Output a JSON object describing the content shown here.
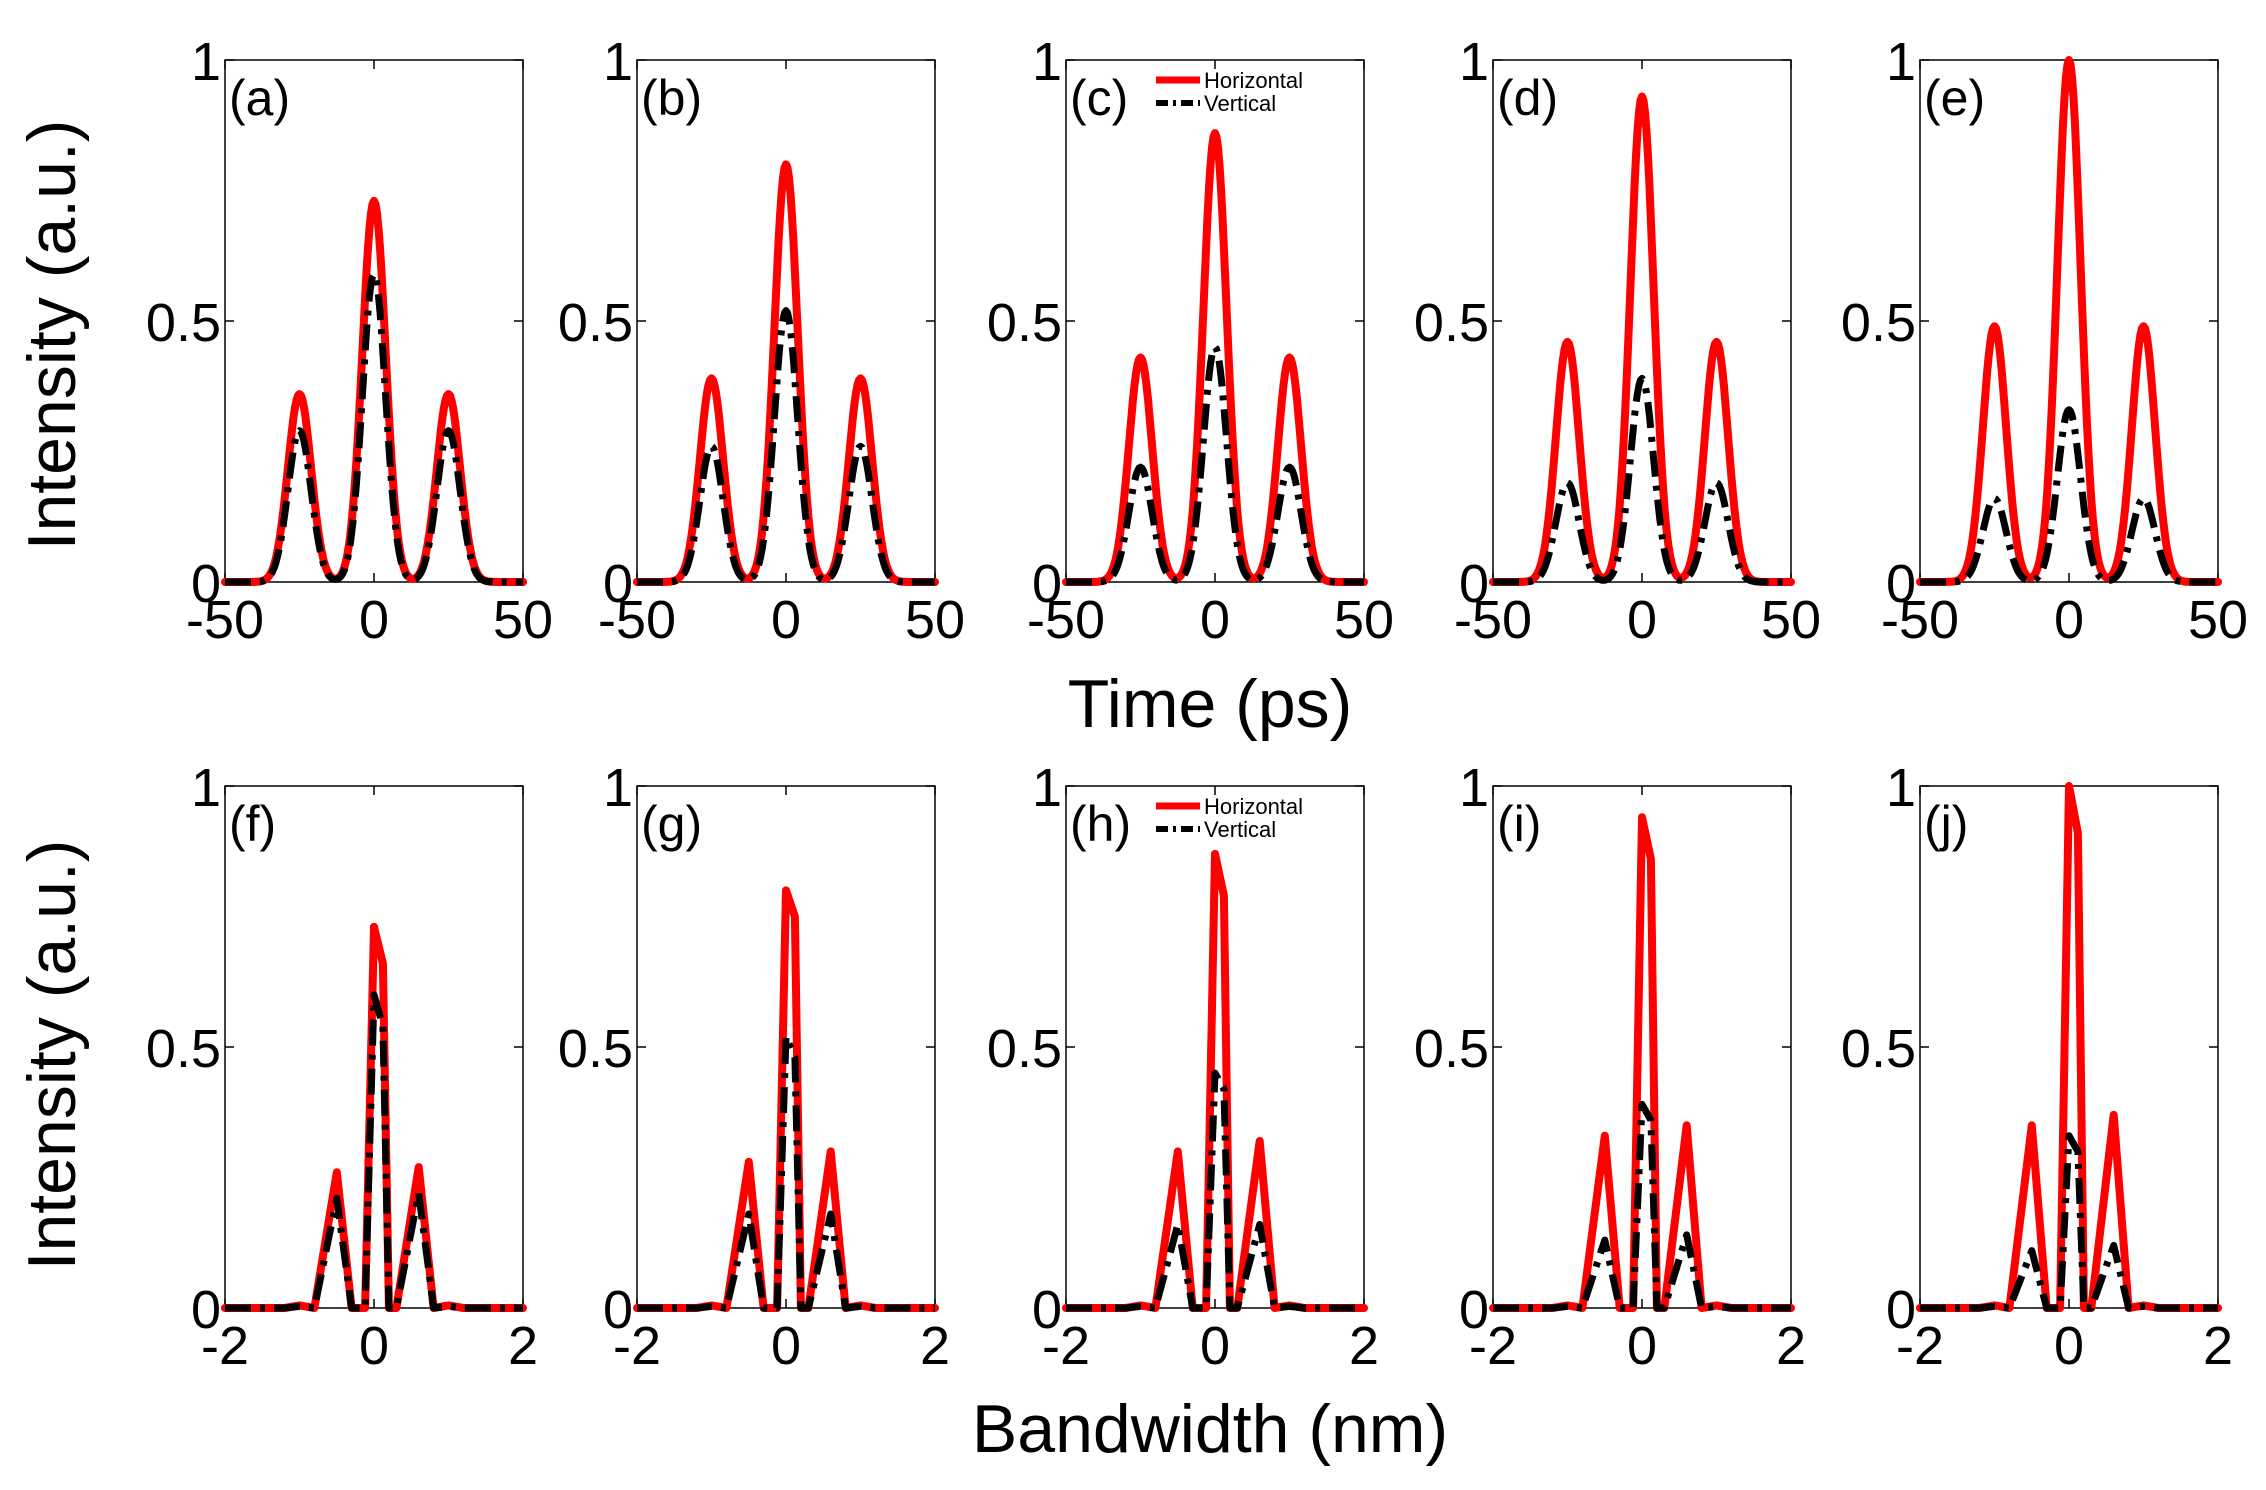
{
  "figure_title": "",
  "colors": {
    "horizontal": "#ff0000",
    "vertical": "#000000"
  },
  "chart_data": [
    {
      "type": "line",
      "label": "(a)",
      "xlabel": "Time (ps)",
      "ylabel": "Intensity (a.u.)",
      "xlim": [
        -50,
        50
      ],
      "ylim": [
        0,
        1
      ],
      "xticks": [
        "-50",
        "0",
        "50"
      ],
      "yticks": [
        "0",
        "0.5",
        "1"
      ],
      "peak_center": 0,
      "side_peak_offset": 25,
      "peak_width": 3.9,
      "profile": "gaussian",
      "series": [
        {
          "name": "Horizontal",
          "peaks": [
            0.36,
            0.73,
            0.36
          ]
        },
        {
          "name": "Vertical",
          "peaks": [
            0.29,
            0.59,
            0.29
          ]
        }
      ]
    },
    {
      "type": "line",
      "label": "(b)",
      "xlabel": "Time (ps)",
      "ylabel": "Intensity (a.u.)",
      "xlim": [
        -50,
        50
      ],
      "ylim": [
        0,
        1
      ],
      "xticks": [
        "-50",
        "0",
        "50"
      ],
      "yticks": [
        "0",
        "0.5",
        "1"
      ],
      "peak_center": 0,
      "side_peak_offset": 25,
      "peak_width": 3.9,
      "profile": "gaussian",
      "series": [
        {
          "name": "Horizontal",
          "peaks": [
            0.39,
            0.8,
            0.39
          ]
        },
        {
          "name": "Vertical",
          "peaks": [
            0.26,
            0.52,
            0.26
          ]
        }
      ]
    },
    {
      "type": "line",
      "label": "(c)",
      "xlabel": "Time (ps)",
      "ylabel": "Intensity (a.u.)",
      "xlim": [
        -50,
        50
      ],
      "ylim": [
        0,
        1
      ],
      "xticks": [
        "-50",
        "0",
        "50"
      ],
      "yticks": [
        "0",
        "0.5",
        "1"
      ],
      "peak_center": 0,
      "side_peak_offset": 25,
      "peak_width": 3.9,
      "profile": "gaussian",
      "legend": {
        "location": "top-right",
        "entries": [
          "Horizontal",
          "Vertical"
        ]
      },
      "series": [
        {
          "name": "Horizontal",
          "peaks": [
            0.43,
            0.86,
            0.43
          ]
        },
        {
          "name": "Vertical",
          "peaks": [
            0.22,
            0.45,
            0.22
          ]
        }
      ]
    },
    {
      "type": "line",
      "label": "(d)",
      "xlabel": "Time (ps)",
      "ylabel": "Intensity (a.u.)",
      "xlim": [
        -50,
        50
      ],
      "ylim": [
        0,
        1
      ],
      "xticks": [
        "-50",
        "0",
        "50"
      ],
      "yticks": [
        "0",
        "0.5",
        "1"
      ],
      "peak_center": 0,
      "side_peak_offset": 25,
      "peak_width": 3.9,
      "profile": "gaussian",
      "series": [
        {
          "name": "Horizontal",
          "peaks": [
            0.46,
            0.93,
            0.46
          ]
        },
        {
          "name": "Vertical",
          "peaks": [
            0.19,
            0.39,
            0.19
          ]
        }
      ]
    },
    {
      "type": "line",
      "label": "(e)",
      "xlabel": "Time (ps)",
      "ylabel": "Intensity (a.u.)",
      "xlim": [
        -50,
        50
      ],
      "ylim": [
        0,
        1
      ],
      "xticks": [
        "-50",
        "0",
        "50"
      ],
      "yticks": [
        "0",
        "0.5",
        "1"
      ],
      "peak_center": 0,
      "side_peak_offset": 25,
      "peak_width": 3.9,
      "profile": "gaussian",
      "series": [
        {
          "name": "Horizontal",
          "peaks": [
            0.49,
            1.0,
            0.49
          ]
        },
        {
          "name": "Vertical",
          "peaks": [
            0.16,
            0.33,
            0.16
          ]
        }
      ]
    },
    {
      "type": "line",
      "label": "(f)",
      "xlabel": "Bandwidth (nm)",
      "ylabel": "Intensity (a.u.)",
      "xlim": [
        -2,
        2
      ],
      "ylim": [
        0,
        1
      ],
      "xticks": [
        "-2",
        "0",
        "2"
      ],
      "yticks": [
        "0",
        "0.5",
        "1"
      ],
      "profile": "sampled",
      "x": [
        -2.0,
        -1.2,
        -1.0,
        -0.8,
        -0.5,
        -0.3,
        -0.2,
        -0.12,
        0.0,
        0.12,
        0.2,
        0.3,
        0.6,
        0.8,
        1.0,
        1.2,
        2.0
      ],
      "series": [
        {
          "name": "Horizontal",
          "values": [
            0,
            0,
            0.005,
            0,
            0.26,
            0,
            0,
            0,
            0.73,
            0.66,
            0,
            0,
            0.27,
            0,
            0.005,
            0,
            0
          ]
        },
        {
          "name": "Vertical",
          "values": [
            0,
            0,
            0.003,
            0,
            0.21,
            0,
            0,
            0,
            0.6,
            0.54,
            0,
            0,
            0.22,
            0,
            0.003,
            0,
            0
          ]
        }
      ]
    },
    {
      "type": "line",
      "label": "(g)",
      "xlabel": "Bandwidth (nm)",
      "ylabel": "Intensity (a.u.)",
      "xlim": [
        -2,
        2
      ],
      "ylim": [
        0,
        1
      ],
      "xticks": [
        "-2",
        "0",
        "2"
      ],
      "yticks": [
        "0",
        "0.5",
        "1"
      ],
      "profile": "sampled",
      "x": [
        -2.0,
        -1.2,
        -1.0,
        -0.8,
        -0.5,
        -0.3,
        -0.2,
        -0.12,
        0.0,
        0.12,
        0.2,
        0.3,
        0.6,
        0.8,
        1.0,
        1.2,
        2.0
      ],
      "series": [
        {
          "name": "Horizontal",
          "values": [
            0,
            0,
            0.005,
            0,
            0.28,
            0,
            0,
            0,
            0.8,
            0.75,
            0,
            0,
            0.3,
            0,
            0.005,
            0,
            0
          ]
        },
        {
          "name": "Vertical",
          "values": [
            0,
            0,
            0.003,
            0,
            0.18,
            0,
            0,
            0,
            0.52,
            0.48,
            0,
            0,
            0.18,
            0,
            0.003,
            0,
            0
          ]
        }
      ]
    },
    {
      "type": "line",
      "label": "(h)",
      "xlabel": "Bandwidth (nm)",
      "ylabel": "Intensity (a.u.)",
      "xlim": [
        -2,
        2
      ],
      "ylim": [
        0,
        1
      ],
      "xticks": [
        "-2",
        "0",
        "2"
      ],
      "yticks": [
        "0",
        "0.5",
        "1"
      ],
      "profile": "sampled",
      "legend": {
        "location": "top-right",
        "entries": [
          "Horizontal",
          "Vertical"
        ]
      },
      "x": [
        -2.0,
        -1.2,
        -1.0,
        -0.8,
        -0.5,
        -0.3,
        -0.2,
        -0.12,
        0.0,
        0.12,
        0.2,
        0.3,
        0.6,
        0.8,
        1.0,
        1.2,
        2.0
      ],
      "series": [
        {
          "name": "Horizontal",
          "values": [
            0,
            0,
            0.005,
            0,
            0.3,
            0,
            0,
            0,
            0.87,
            0.79,
            0,
            0,
            0.32,
            0,
            0.005,
            0,
            0
          ]
        },
        {
          "name": "Vertical",
          "values": [
            0,
            0,
            0.003,
            0,
            0.16,
            0,
            0,
            0,
            0.45,
            0.42,
            0,
            0,
            0.16,
            0,
            0.003,
            0,
            0
          ]
        }
      ]
    },
    {
      "type": "line",
      "label": "(i)",
      "xlabel": "Bandwidth (nm)",
      "ylabel": "Intensity (a.u.)",
      "xlim": [
        -2,
        2
      ],
      "ylim": [
        0,
        1
      ],
      "xticks": [
        "-2",
        "0",
        "2"
      ],
      "yticks": [
        "0",
        "0.5",
        "1"
      ],
      "profile": "sampled",
      "x": [
        -2.0,
        -1.2,
        -1.0,
        -0.8,
        -0.5,
        -0.3,
        -0.2,
        -0.12,
        0.0,
        0.12,
        0.2,
        0.3,
        0.6,
        0.8,
        1.0,
        1.2,
        2.0
      ],
      "series": [
        {
          "name": "Horizontal",
          "values": [
            0,
            0,
            0.005,
            0,
            0.33,
            0,
            0,
            0,
            0.94,
            0.86,
            0,
            0,
            0.35,
            0,
            0.005,
            0,
            0
          ]
        },
        {
          "name": "Vertical",
          "values": [
            0,
            0,
            0.003,
            0,
            0.13,
            0,
            0,
            0,
            0.39,
            0.36,
            0,
            0,
            0.14,
            0,
            0.003,
            0,
            0
          ]
        }
      ]
    },
    {
      "type": "line",
      "label": "(j)",
      "xlabel": "Bandwidth (nm)",
      "ylabel": "Intensity (a.u.)",
      "xlim": [
        -2,
        2
      ],
      "ylim": [
        0,
        1
      ],
      "xticks": [
        "-2",
        "0",
        "2"
      ],
      "yticks": [
        "0",
        "0.5",
        "1"
      ],
      "profile": "sampled",
      "x": [
        -2.0,
        -1.2,
        -1.0,
        -0.8,
        -0.5,
        -0.3,
        -0.2,
        -0.12,
        0.0,
        0.12,
        0.2,
        0.3,
        0.6,
        0.8,
        1.0,
        1.2,
        2.0
      ],
      "series": [
        {
          "name": "Horizontal",
          "values": [
            0,
            0,
            0.005,
            0,
            0.35,
            0,
            0,
            0,
            1.0,
            0.91,
            0,
            0,
            0.37,
            0,
            0.005,
            0,
            0
          ]
        },
        {
          "name": "Vertical",
          "values": [
            0,
            0,
            0.003,
            0,
            0.11,
            0,
            0,
            0,
            0.33,
            0.3,
            0,
            0,
            0.12,
            0,
            0.003,
            0,
            0
          ]
        }
      ]
    }
  ],
  "shared_labels": {
    "top_ylabel": "Intensity (a.u.)",
    "bottom_ylabel": "Intensity (a.u.)",
    "top_xlabel": "Time (ps)",
    "bottom_xlabel": "Bandwidth (nm)"
  }
}
